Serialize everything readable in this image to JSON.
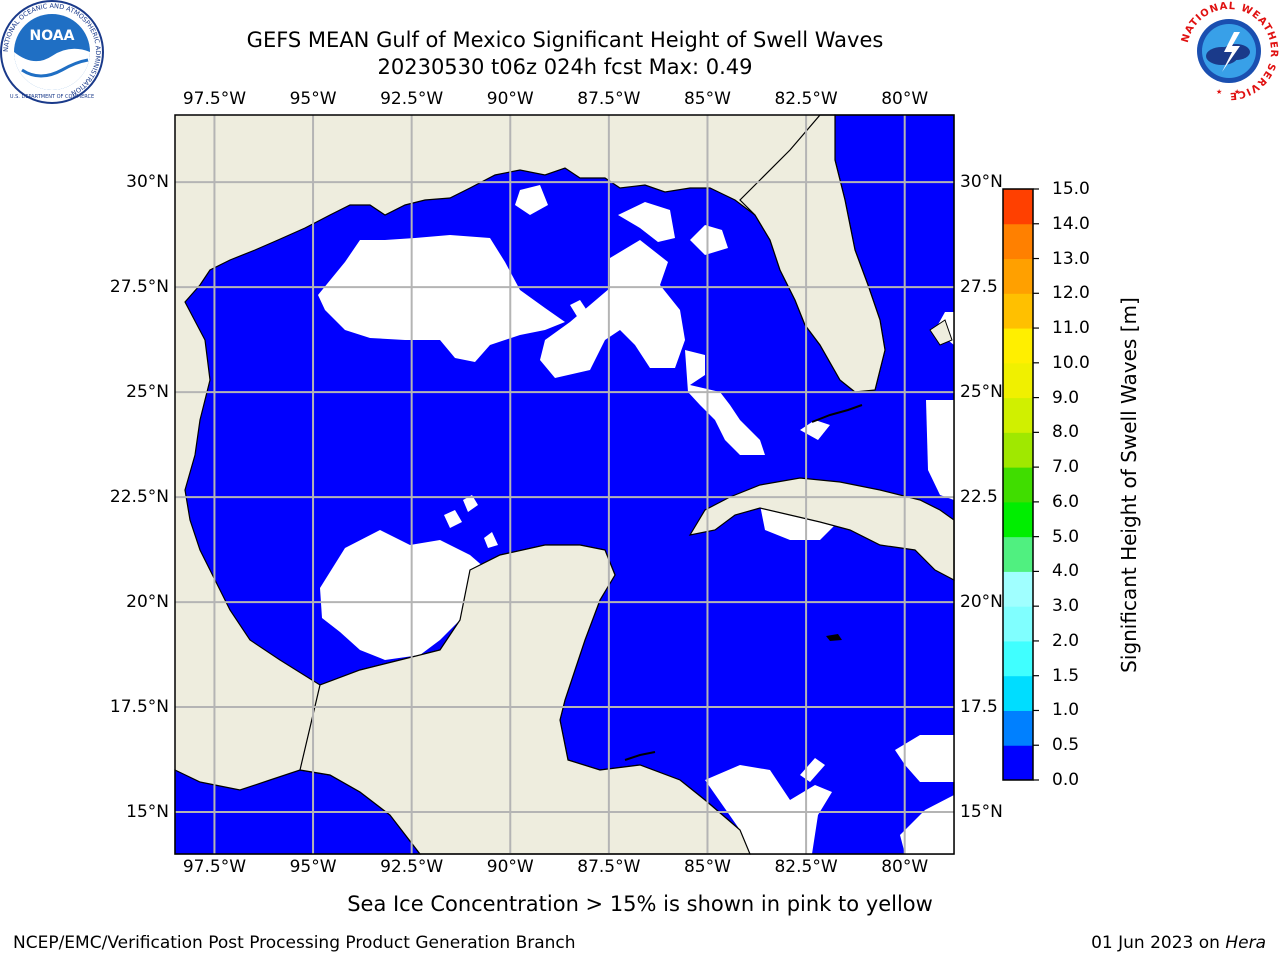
{
  "title_line1": "GEFS MEAN Gulf of Mexico Significant Height of Swell Waves",
  "title_line2": "20230530 t06z 024h fcst   Max: 0.49",
  "noaa_logo": {
    "center_text": "NOAA",
    "ring_text": "NATIONAL OCEANIC AND ATMOSPHERIC ADMINISTRATION",
    "bottom_text": "U.S. DEPARTMENT OF COMMERCE"
  },
  "nws_logo": {
    "ring_text": "NATIONAL WEATHER SERVICE"
  },
  "map": {
    "lon_range": [
      -98.5,
      -78.75
    ],
    "lat_range": [
      14,
      31.6
    ],
    "longitude_labels": [
      "97.5°W",
      "95°W",
      "92.5°W",
      "90°W",
      "87.5°W",
      "85°W",
      "82.5°W",
      "80°W"
    ],
    "latitude_labels": [
      "30°N",
      "27.5°N",
      "25°N",
      "22.5°N",
      "20°N",
      "17.5°N",
      "15°N"
    ],
    "right_latitude_labels": [
      "30°N",
      "27.5",
      "25°N",
      "22.5",
      "20°N",
      "17.5",
      "15°N"
    ],
    "colors": {
      "land": "#eeedde",
      "swell_0_05": "#0000ff",
      "gridline": "#b4b4b4",
      "no_data": "#ffffff"
    }
  },
  "colorbar": {
    "title": "Significant Height of Swell Waves [m]",
    "tick_labels": [
      "0.0",
      "0.5",
      "1.0",
      "1.5",
      "2.0",
      "3.0",
      "4.0",
      "5.0",
      "6.0",
      "7.0",
      "8.0",
      "9.0",
      "10.0",
      "11.0",
      "12.0",
      "13.0",
      "14.0",
      "15.0"
    ],
    "colors": [
      "#0000ff",
      "#0080ff",
      "#00ddff",
      "#40ffff",
      "#80ffff",
      "#a0ffff",
      "#50f080",
      "#00ee00",
      "#40dd00",
      "#a0e800",
      "#d0f000",
      "#f0f000",
      "#ffef00",
      "#ffc000",
      "#ffa000",
      "#ff8000",
      "#ff4000",
      "#ff0000"
    ]
  },
  "footnote": "Sea Ice Concentration > 15% is shown in pink to yellow",
  "footer_left": "NCEP/EMC/Verification Post Processing Product Generation Branch",
  "footer_date": "01 Jun 2023 on ",
  "footer_machine": "Hera"
}
